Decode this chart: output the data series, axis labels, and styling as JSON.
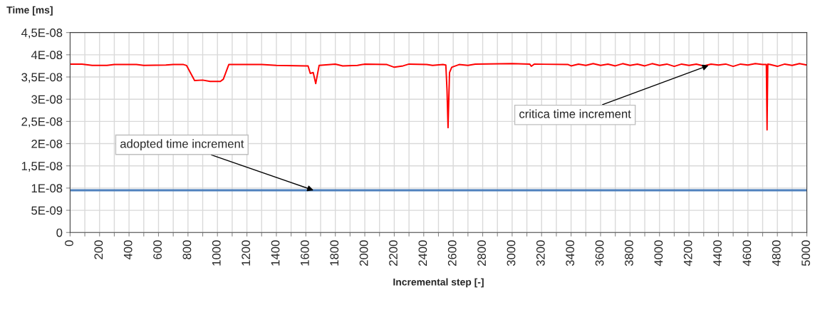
{
  "chart_data": {
    "type": "line",
    "ylabel": "Time [ms]",
    "xlabel": "Incremental step [-]",
    "xlim": [
      0,
      5000
    ],
    "ylim": [
      0,
      4.5e-08
    ],
    "xticks": [
      0,
      {
        "value": 100,
        "label": null
      },
      200,
      {
        "value": 300,
        "label": null
      },
      400,
      {
        "value": 500,
        "label": null
      },
      600,
      {
        "value": 700,
        "label": null
      },
      800,
      {
        "value": 900,
        "label": null
      },
      1000,
      {
        "value": 1100,
        "label": null
      },
      1200,
      {
        "value": 1300,
        "label": null
      },
      1400,
      {
        "value": 1500,
        "label": null
      },
      1600,
      {
        "value": 1700,
        "label": null
      },
      1800,
      {
        "value": 1900,
        "label": null
      },
      2000,
      {
        "value": 2100,
        "label": null
      },
      2200,
      {
        "value": 2300,
        "label": null
      },
      2400,
      {
        "value": 2500,
        "label": null
      },
      2600,
      {
        "value": 2700,
        "label": null
      },
      2800,
      {
        "value": 2900,
        "label": null
      },
      3000,
      {
        "value": 3100,
        "label": null
      },
      3200,
      {
        "value": 3300,
        "label": null
      },
      3400,
      {
        "value": 3500,
        "label": null
      },
      3600,
      {
        "value": 3700,
        "label": null
      },
      3800,
      {
        "value": 3900,
        "label": null
      },
      4000,
      {
        "value": 4100,
        "label": null
      },
      4200,
      {
        "value": 4300,
        "label": null
      },
      4400,
      {
        "value": 4500,
        "label": null
      },
      4600,
      {
        "value": 4700,
        "label": null
      },
      4800,
      {
        "value": 4900,
        "label": null
      },
      5000
    ],
    "yticks": [
      {
        "value": 0,
        "label": "0"
      },
      {
        "value": 5e-09,
        "label": "5E-09"
      },
      {
        "value": 1e-08,
        "label": "1E-08"
      },
      {
        "value": 1.5e-08,
        "label": "1,5E-08"
      },
      {
        "value": 2e-08,
        "label": "2E-08"
      },
      {
        "value": 2.5e-08,
        "label": "2,5E-08"
      },
      {
        "value": 3e-08,
        "label": "3E-08"
      },
      {
        "value": 3.5e-08,
        "label": "3,5E-08"
      },
      {
        "value": 4e-08,
        "label": "4E-08"
      },
      {
        "value": 4.5e-08,
        "label": "4,5E-08"
      }
    ],
    "grid": true,
    "legend": false,
    "marker": "none",
    "line_style": "solid",
    "series": [
      {
        "color": "#ff0000",
        "x": [
          0,
          80,
          150,
          250,
          300,
          450,
          500,
          650,
          700,
          770,
          790,
          845,
          900,
          950,
          1020,
          1040,
          1077,
          1300,
          1400,
          1600,
          1615,
          1630,
          1650,
          1667,
          1690,
          1800,
          1850,
          1950,
          2000,
          2150,
          2200,
          2260,
          2300,
          2420,
          2460,
          2530,
          2550,
          2558,
          2565,
          2575,
          2590,
          2640,
          2700,
          2750,
          3000,
          3120,
          3130,
          3150,
          3380,
          3400,
          3450,
          3500,
          3550,
          3600,
          3650,
          3700,
          3750,
          3800,
          3850,
          3900,
          3950,
          4000,
          4050,
          4100,
          4150,
          4200,
          4250,
          4300,
          4350,
          4400,
          4450,
          4500,
          4550,
          4600,
          4650,
          4700,
          4725,
          4730,
          4735,
          4750,
          4800,
          4850,
          4900,
          4950,
          5000
        ],
        "values": [
          3.79e-08,
          3.79e-08,
          3.76e-08,
          3.76e-08,
          3.78e-08,
          3.78e-08,
          3.76e-08,
          3.77e-08,
          3.78e-08,
          3.78e-08,
          3.76e-08,
          3.42e-08,
          3.43e-08,
          3.4e-08,
          3.4e-08,
          3.45e-08,
          3.78e-08,
          3.78e-08,
          3.76e-08,
          3.75e-08,
          3.75e-08,
          3.58e-08,
          3.6e-08,
          3.35e-08,
          3.76e-08,
          3.79e-08,
          3.75e-08,
          3.76e-08,
          3.79e-08,
          3.78e-08,
          3.72e-08,
          3.75e-08,
          3.79e-08,
          3.78e-08,
          3.76e-08,
          3.78e-08,
          3.77e-08,
          3.2e-08,
          2.36e-08,
          3.6e-08,
          3.72e-08,
          3.78e-08,
          3.76e-08,
          3.79e-08,
          3.8e-08,
          3.79e-08,
          3.74e-08,
          3.79e-08,
          3.78e-08,
          3.75e-08,
          3.79e-08,
          3.76e-08,
          3.8e-08,
          3.76e-08,
          3.79e-08,
          3.75e-08,
          3.8e-08,
          3.76e-08,
          3.79e-08,
          3.75e-08,
          3.8e-08,
          3.76e-08,
          3.79e-08,
          3.74e-08,
          3.79e-08,
          3.76e-08,
          3.79e-08,
          3.75e-08,
          3.79e-08,
          3.77e-08,
          3.79e-08,
          3.74e-08,
          3.79e-08,
          3.77e-08,
          3.8e-08,
          3.78e-08,
          3.78e-08,
          2.31e-08,
          3.79e-08,
          3.78e-08,
          3.74e-08,
          3.79e-08,
          3.76e-08,
          3.8e-08,
          3.77e-08
        ]
      },
      {
        "color": "#4f81bd",
        "x": [
          0,
          5000
        ],
        "values": [
          9.5e-09,
          9.5e-09
        ]
      }
    ],
    "annotations": [
      {
        "text": "critica time increment",
        "x": 4333,
        "y": 3.76e-08
      },
      {
        "text": "adopted time increment",
        "x": 1652,
        "y": 9.5e-09
      }
    ]
  }
}
